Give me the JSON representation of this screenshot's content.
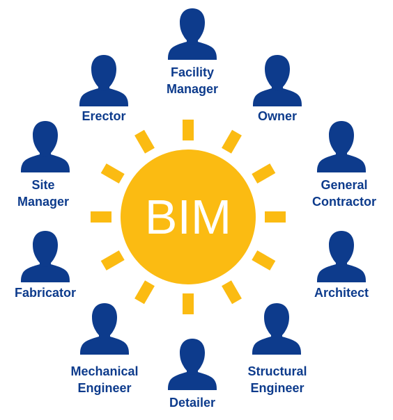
{
  "center": {
    "label": "BIM"
  },
  "colors": {
    "sun": "#fbbb12",
    "person": "#0d3b8c",
    "center_text": "#ffffff"
  },
  "roles": [
    {
      "id": "facility-manager",
      "icon": "person-icon",
      "lines": [
        "Facility",
        "Manager"
      ]
    },
    {
      "id": "owner",
      "icon": "person-icon",
      "lines": [
        "Owner"
      ]
    },
    {
      "id": "general-contractor",
      "icon": "person-icon",
      "lines": [
        "General",
        "Contractor"
      ]
    },
    {
      "id": "architect",
      "icon": "person-icon",
      "lines": [
        "Architect"
      ]
    },
    {
      "id": "structural-engineer",
      "icon": "person-icon",
      "lines": [
        "Structural",
        "Engineer"
      ]
    },
    {
      "id": "detailer",
      "icon": "person-icon",
      "lines": [
        "Detailer"
      ]
    },
    {
      "id": "mechanical-engineer",
      "icon": "person-icon",
      "lines": [
        "Mechanical",
        "Engineer"
      ]
    },
    {
      "id": "fabricator",
      "icon": "person-icon",
      "lines": [
        "Fabricator"
      ]
    },
    {
      "id": "site-manager",
      "icon": "person-icon",
      "lines": [
        "Site",
        "Manager"
      ]
    },
    {
      "id": "erector",
      "icon": "person-icon",
      "lines": [
        "Erector"
      ]
    }
  ]
}
